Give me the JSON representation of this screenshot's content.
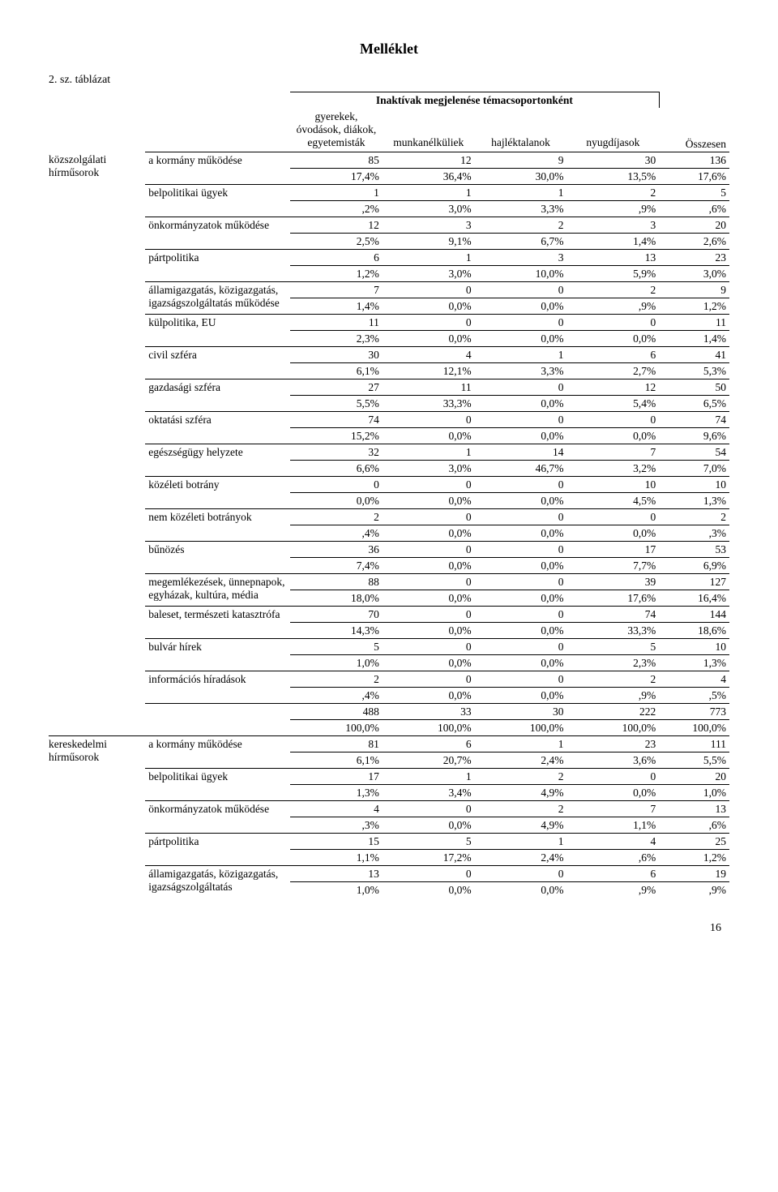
{
  "title": "Melléklet",
  "subtitle": "2. sz. táblázat",
  "header_title": "Inaktívak megjelenése témacsoportonként",
  "header_cols": [
    "gyerekek, óvodások, diákok, egyetemisták",
    "munkanélküliek",
    "hajléktalanok",
    "nyugdíjasok",
    "Összesen"
  ],
  "page_num": "16",
  "groups": [
    {
      "name": "közszolgálati hírműsorok",
      "rows": [
        {
          "label": "a kormány működése",
          "c": [
            "85",
            "12",
            "9",
            "30",
            "136"
          ],
          "p": [
            "17,4%",
            "36,4%",
            "30,0%",
            "13,5%",
            "17,6%"
          ]
        },
        {
          "label": "belpolitikai ügyek",
          "c": [
            "1",
            "1",
            "1",
            "2",
            "5"
          ],
          "p": [
            ",2%",
            "3,0%",
            "3,3%",
            ",9%",
            ",6%"
          ]
        },
        {
          "label": "önkormányzatok működése",
          "c": [
            "12",
            "3",
            "2",
            "3",
            "20"
          ],
          "p": [
            "2,5%",
            "9,1%",
            "6,7%",
            "1,4%",
            "2,6%"
          ]
        },
        {
          "label": "pártpolitika",
          "c": [
            "6",
            "1",
            "3",
            "13",
            "23"
          ],
          "p": [
            "1,2%",
            "3,0%",
            "10,0%",
            "5,9%",
            "3,0%"
          ]
        },
        {
          "label": "államigazgatás, közigazgatás, igazságszolgáltatás működése",
          "c": [
            "7",
            "0",
            "0",
            "2",
            "9"
          ],
          "p": [
            "1,4%",
            "0,0%",
            "0,0%",
            ",9%",
            "1,2%"
          ]
        },
        {
          "label": "külpolitika, EU",
          "c": [
            "11",
            "0",
            "0",
            "0",
            "11"
          ],
          "p": [
            "2,3%",
            "0,0%",
            "0,0%",
            "0,0%",
            "1,4%"
          ]
        },
        {
          "label": "civil szféra",
          "c": [
            "30",
            "4",
            "1",
            "6",
            "41"
          ],
          "p": [
            "6,1%",
            "12,1%",
            "3,3%",
            "2,7%",
            "5,3%"
          ]
        },
        {
          "label": "gazdasági szféra",
          "c": [
            "27",
            "11",
            "0",
            "12",
            "50"
          ],
          "p": [
            "5,5%",
            "33,3%",
            "0,0%",
            "5,4%",
            "6,5%"
          ]
        },
        {
          "label": "oktatási szféra",
          "c": [
            "74",
            "0",
            "0",
            "0",
            "74"
          ],
          "p": [
            "15,2%",
            "0,0%",
            "0,0%",
            "0,0%",
            "9,6%"
          ]
        },
        {
          "label": "egészségügy helyzete",
          "c": [
            "32",
            "1",
            "14",
            "7",
            "54"
          ],
          "p": [
            "6,6%",
            "3,0%",
            "46,7%",
            "3,2%",
            "7,0%"
          ]
        },
        {
          "label": "közéleti botrány",
          "c": [
            "0",
            "0",
            "0",
            "10",
            "10"
          ],
          "p": [
            "0,0%",
            "0,0%",
            "0,0%",
            "4,5%",
            "1,3%"
          ]
        },
        {
          "label": "nem közéleti botrányok",
          "c": [
            "2",
            "0",
            "0",
            "0",
            "2"
          ],
          "p": [
            ",4%",
            "0,0%",
            "0,0%",
            "0,0%",
            ",3%"
          ]
        },
        {
          "label": "bűnözés",
          "c": [
            "36",
            "0",
            "0",
            "17",
            "53"
          ],
          "p": [
            "7,4%",
            "0,0%",
            "0,0%",
            "7,7%",
            "6,9%"
          ]
        },
        {
          "label": "megemlékezések, ünnepnapok, egyházak, kultúra, média",
          "c": [
            "88",
            "0",
            "0",
            "39",
            "127"
          ],
          "p": [
            "18,0%",
            "0,0%",
            "0,0%",
            "17,6%",
            "16,4%"
          ]
        },
        {
          "label": "baleset, természeti katasztrófa",
          "c": [
            "70",
            "0",
            "0",
            "74",
            "144"
          ],
          "p": [
            "14,3%",
            "0,0%",
            "0,0%",
            "33,3%",
            "18,6%"
          ]
        },
        {
          "label": "bulvár hírek",
          "c": [
            "5",
            "0",
            "0",
            "5",
            "10"
          ],
          "p": [
            "1,0%",
            "0,0%",
            "0,0%",
            "2,3%",
            "1,3%"
          ]
        },
        {
          "label": "információs híradások",
          "c": [
            "2",
            "0",
            "0",
            "2",
            "4"
          ],
          "p": [
            ",4%",
            "0,0%",
            "0,0%",
            ",9%",
            ",5%"
          ]
        },
        {
          "label": "",
          "c": [
            "488",
            "33",
            "30",
            "222",
            "773"
          ],
          "p": [
            "100,0%",
            "100,0%",
            "100,0%",
            "100,0%",
            "100,0%"
          ]
        }
      ]
    },
    {
      "name": "kereskedelmi hírműsorok",
      "rows": [
        {
          "label": "a kormány működése",
          "c": [
            "81",
            "6",
            "1",
            "23",
            "111"
          ],
          "p": [
            "6,1%",
            "20,7%",
            "2,4%",
            "3,6%",
            "5,5%"
          ]
        },
        {
          "label": "belpolitikai ügyek",
          "c": [
            "17",
            "1",
            "2",
            "0",
            "20"
          ],
          "p": [
            "1,3%",
            "3,4%",
            "4,9%",
            "0,0%",
            "1,0%"
          ]
        },
        {
          "label": "önkormányzatok működése",
          "c": [
            "4",
            "0",
            "2",
            "7",
            "13"
          ],
          "p": [
            ",3%",
            "0,0%",
            "4,9%",
            "1,1%",
            ",6%"
          ]
        },
        {
          "label": "pártpolitika",
          "c": [
            "15",
            "5",
            "1",
            "4",
            "25"
          ],
          "p": [
            "1,1%",
            "17,2%",
            "2,4%",
            ",6%",
            "1,2%"
          ]
        },
        {
          "label": "államigazgatás, közigazgatás, igazságszolgáltatás",
          "c": [
            "13",
            "0",
            "0",
            "6",
            "19"
          ],
          "p": [
            "1,0%",
            "0,0%",
            "0,0%",
            ",9%",
            ",9%"
          ],
          "open": true
        }
      ]
    }
  ]
}
